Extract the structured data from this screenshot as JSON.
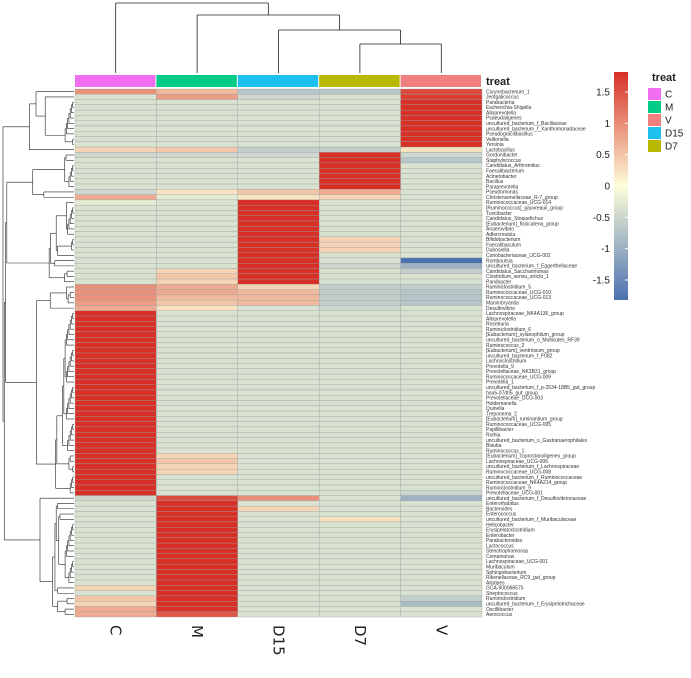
{
  "chart_data": {
    "type": "heatmap",
    "title": "",
    "annotation_label": "treat",
    "columns": [
      "C",
      "M",
      "D15",
      "D7",
      "V"
    ],
    "groups": [
      {
        "name": "C",
        "color": "#f06ef0"
      },
      {
        "name": "M",
        "color": "#00cc88"
      },
      {
        "name": "V",
        "color": "#f08080"
      },
      {
        "name": "D15",
        "color": "#1ec0f0"
      },
      {
        "name": "D7",
        "color": "#b8b800"
      }
    ],
    "color_scale": {
      "min": -1.5,
      "max": 1.5,
      "low": "#4a70b0",
      "mid": "#fdfdd8",
      "high": "#d73027",
      "ticks": [
        "1.5",
        "1",
        "0.5",
        "0",
        "-0.5",
        "-1",
        "-1.5"
      ]
    },
    "rows": [
      {
        "name": "Corynebacterium_1",
        "values": [
          0.8,
          0.5,
          -0.6,
          -0.6,
          1.3
        ]
      },
      {
        "name": "Jeotgalicoccus",
        "values": [
          -0.3,
          0.7,
          -0.4,
          -0.3,
          1.4
        ]
      },
      {
        "name": "Parabacteria",
        "values": [
          -0.3,
          -0.3,
          -0.3,
          -0.3,
          1.8
        ]
      },
      {
        "name": "Escherichia-Shigella",
        "values": [
          -0.3,
          -0.3,
          -0.3,
          -0.3,
          1.8
        ]
      },
      {
        "name": "Alloprevotella",
        "values": [
          -0.3,
          -0.3,
          -0.3,
          -0.3,
          1.8
        ]
      },
      {
        "name": "Psaeudaligenes",
        "values": [
          -0.3,
          -0.3,
          -0.3,
          -0.3,
          1.8
        ]
      },
      {
        "name": "uncultured_bacterium_f_Bacillaceae",
        "values": [
          -0.3,
          -0.3,
          -0.3,
          -0.3,
          1.8
        ]
      },
      {
        "name": "uncultured_bacterium_f_Xanthomonadaceae",
        "values": [
          -0.3,
          -0.3,
          -0.3,
          -0.3,
          1.8
        ]
      },
      {
        "name": "Pseudogracilibacillus",
        "values": [
          -0.3,
          -0.3,
          -0.3,
          -0.3,
          1.8
        ]
      },
      {
        "name": "Veillonella",
        "values": [
          -0.3,
          -0.3,
          -0.3,
          -0.3,
          1.8
        ]
      },
      {
        "name": "Yersinia",
        "values": [
          -0.3,
          -0.3,
          -0.3,
          -0.3,
          1.8
        ]
      },
      {
        "name": "Lactobacillus",
        "values": [
          0.3,
          0.4,
          -0.5,
          -0.5,
          0.2
        ]
      },
      {
        "name": "Gordonibacter",
        "values": [
          -0.4,
          -0.4,
          -0.4,
          1.8,
          -0.4
        ]
      },
      {
        "name": "Staphylococcus",
        "values": [
          -0.3,
          -0.3,
          -0.3,
          1.8,
          -0.6
        ]
      },
      {
        "name": "Candidatus_Arthromitus",
        "values": [
          -0.3,
          -0.3,
          -0.3,
          1.8,
          -0.3
        ]
      },
      {
        "name": "Faecalibacterium",
        "values": [
          -0.3,
          -0.3,
          -0.3,
          1.8,
          -0.3
        ]
      },
      {
        "name": "Acinetobacter",
        "values": [
          -0.3,
          -0.3,
          -0.3,
          1.8,
          -0.3
        ]
      },
      {
        "name": "Bacillus",
        "values": [
          -0.3,
          -0.3,
          -0.3,
          1.8,
          -0.3
        ]
      },
      {
        "name": "Paraprevotella",
        "values": [
          -0.3,
          -0.3,
          -0.3,
          1.8,
          -0.3
        ]
      },
      {
        "name": "Pseudomonas",
        "values": [
          -0.4,
          0.2,
          0.4,
          0.6,
          -0.3
        ]
      },
      {
        "name": "Christensenellaceae_R-7_group",
        "values": [
          0.6,
          -0.2,
          0.2,
          0.3,
          -0.3
        ]
      },
      {
        "name": "Ruminococcaceae_UCG-014",
        "values": [
          -0.2,
          -0.3,
          1.8,
          -0.3,
          -0.3
        ]
      },
      {
        "name": "[Ruminococcus]_gauvreauii_group",
        "values": [
          -0.3,
          -0.3,
          1.8,
          -0.3,
          -0.3
        ]
      },
      {
        "name": "Turicibacter",
        "values": [
          -0.3,
          -0.3,
          1.8,
          -0.3,
          -0.3
        ]
      },
      {
        "name": "Candidatus_Stoquefichus",
        "values": [
          -0.3,
          -0.3,
          1.8,
          -0.3,
          -0.3
        ]
      },
      {
        "name": "[Eubacterium]_fissicatena_group",
        "values": [
          -0.3,
          -0.3,
          1.8,
          -0.3,
          -0.3
        ]
      },
      {
        "name": "Anaerovibrio",
        "values": [
          -0.3,
          -0.3,
          1.8,
          -0.3,
          -0.3
        ]
      },
      {
        "name": "Adlercreutzia",
        "values": [
          -0.3,
          -0.3,
          1.8,
          -0.3,
          -0.3
        ]
      },
      {
        "name": "Bifidobacterium",
        "values": [
          -0.3,
          -0.3,
          1.8,
          0.3,
          -0.3
        ]
      },
      {
        "name": "Faecalibaculum",
        "values": [
          -0.3,
          -0.3,
          1.8,
          0.3,
          -0.3
        ]
      },
      {
        "name": "Dubosiella",
        "values": [
          -0.3,
          -0.3,
          1.8,
          0.3,
          -0.3
        ]
      },
      {
        "name": "Coriobacteriaceae_UCG-002",
        "values": [
          -0.3,
          -0.3,
          1.8,
          -0.3,
          -0.3
        ]
      },
      {
        "name": "Romboutsia",
        "values": [
          -0.3,
          -0.3,
          1.8,
          -0.3,
          -1.5
        ]
      },
      {
        "name": "uncultured_bacterium_f_Eggerthellaceae",
        "values": [
          -0.3,
          -0.3,
          1.8,
          -0.4,
          -0.8
        ]
      },
      {
        "name": "Candidatus_Saccharimonas",
        "values": [
          -0.3,
          0.3,
          1.8,
          -0.3,
          -0.5
        ]
      },
      {
        "name": "Clostridium_sensu_stricto_1",
        "values": [
          -0.3,
          0.4,
          1.8,
          -0.3,
          -0.3
        ]
      },
      {
        "name": "Parvibacter",
        "values": [
          -0.3,
          0.3,
          1.5,
          -0.3,
          -0.3
        ]
      },
      {
        "name": "Ruminiclostridium_5",
        "values": [
          0.8,
          0.6,
          0.3,
          -0.5,
          -0.5
        ]
      },
      {
        "name": "Ruminococcaceae_UCG-010",
        "values": [
          0.8,
          0.6,
          0.5,
          -0.5,
          -0.6
        ]
      },
      {
        "name": "Ruminococcaceae_UCG-013",
        "values": [
          0.8,
          0.5,
          0.5,
          -0.5,
          -0.6
        ]
      },
      {
        "name": "Marvinbryantia",
        "values": [
          0.7,
          0.4,
          0.5,
          -0.5,
          -0.6
        ]
      },
      {
        "name": "Desulfovibrio",
        "values": [
          0.6,
          0.2,
          -0.3,
          -0.4,
          -0.3
        ]
      },
      {
        "name": "Lachnospiraceae_NK4A136_group",
        "values": [
          1.8,
          -0.3,
          -0.3,
          -0.3,
          -0.3
        ]
      },
      {
        "name": "Alloprevotella",
        "values": [
          1.8,
          -0.3,
          -0.3,
          -0.3,
          -0.3
        ]
      },
      {
        "name": "Roseburia",
        "values": [
          1.8,
          -0.3,
          -0.3,
          -0.3,
          -0.3
        ]
      },
      {
        "name": "Ruminiclostridium_6",
        "values": [
          1.8,
          -0.3,
          -0.3,
          -0.3,
          -0.3
        ]
      },
      {
        "name": "[Eubacterium]_xylanophilum_group",
        "values": [
          1.8,
          -0.3,
          -0.3,
          -0.3,
          -0.3
        ]
      },
      {
        "name": "uncultured_bacterium_o_Mollicutes_RF39",
        "values": [
          1.8,
          -0.3,
          -0.3,
          -0.3,
          -0.3
        ]
      },
      {
        "name": "Ruminococcus_2",
        "values": [
          1.8,
          -0.3,
          -0.3,
          -0.3,
          -0.3
        ]
      },
      {
        "name": "[Eubacterium]_ventriosum_group",
        "values": [
          1.8,
          -0.3,
          -0.3,
          -0.3,
          -0.3
        ]
      },
      {
        "name": "uncultured_bacterium_f_F082",
        "values": [
          1.8,
          -0.3,
          -0.3,
          -0.3,
          -0.3
        ]
      },
      {
        "name": "Lachnoclostridium",
        "values": [
          1.8,
          -0.3,
          -0.3,
          -0.3,
          -0.3
        ]
      },
      {
        "name": "Prevotella_9",
        "values": [
          1.8,
          -0.3,
          -0.3,
          -0.3,
          -0.3
        ]
      },
      {
        "name": "Prevotellaceae_NK3B31_group",
        "values": [
          1.8,
          -0.3,
          -0.3,
          -0.3,
          -0.3
        ]
      },
      {
        "name": "Ruminococcaceae_UCG-009",
        "values": [
          1.8,
          -0.3,
          -0.3,
          -0.3,
          -0.3
        ]
      },
      {
        "name": "Prevotella_1",
        "values": [
          1.8,
          -0.3,
          -0.3,
          -0.3,
          -0.3
        ]
      },
      {
        "name": "uncultured_bacterium_f_p-2534-18B5_gut_group",
        "values": [
          1.8,
          -0.3,
          -0.3,
          -0.3,
          -0.3
        ]
      },
      {
        "name": "hoa5-07d05_gut_group",
        "values": [
          1.8,
          -0.3,
          -0.3,
          -0.3,
          -0.3
        ]
      },
      {
        "name": "Prevotellaceae_UCG-003",
        "values": [
          1.8,
          -0.3,
          -0.3,
          -0.3,
          -0.3
        ]
      },
      {
        "name": "Holdemanella",
        "values": [
          1.8,
          -0.3,
          -0.3,
          -0.3,
          -0.3
        ]
      },
      {
        "name": "Quinella",
        "values": [
          1.8,
          -0.3,
          -0.3,
          -0.3,
          -0.3
        ]
      },
      {
        "name": "Treponema_2",
        "values": [
          1.8,
          -0.3,
          -0.3,
          -0.3,
          -0.3
        ]
      },
      {
        "name": "[Eubacterium]_ruminantium_group",
        "values": [
          1.8,
          -0.3,
          -0.3,
          -0.3,
          -0.3
        ]
      },
      {
        "name": "Ruminococcaceae_UCG-005",
        "values": [
          1.8,
          -0.3,
          -0.3,
          -0.3,
          -0.3
        ]
      },
      {
        "name": "Papillibacter",
        "values": [
          1.8,
          -0.3,
          -0.3,
          -0.3,
          -0.3
        ]
      },
      {
        "name": "Rothia",
        "values": [
          1.8,
          -0.3,
          -0.3,
          -0.3,
          -0.3
        ]
      },
      {
        "name": "uncultured_bacterium_o_Gastranaerophilales",
        "values": [
          1.8,
          -0.3,
          -0.3,
          -0.3,
          -0.3
        ]
      },
      {
        "name": "Blautia",
        "values": [
          1.8,
          -0.3,
          -0.3,
          -0.3,
          -0.3
        ]
      },
      {
        "name": "Ruminococcus_1",
        "values": [
          1.8,
          -0.3,
          -0.3,
          -0.3,
          -0.3
        ]
      },
      {
        "name": "[Eubacterium]_coprostanoligenes_group",
        "values": [
          1.8,
          0.3,
          -0.3,
          -0.3,
          -0.3
        ]
      },
      {
        "name": "Lachnospiraceae_UCG-006",
        "values": [
          1.8,
          0.4,
          -0.3,
          -0.3,
          -0.3
        ]
      },
      {
        "name": "uncultured_bacterium_f_Lachnospiraceae",
        "values": [
          1.8,
          0.3,
          -0.3,
          -0.3,
          -0.3
        ]
      },
      {
        "name": "Ruminococcaceae_UCG-008",
        "values": [
          1.8,
          0.3,
          -0.3,
          -0.3,
          -0.3
        ]
      },
      {
        "name": "uncultured_bacterium_f_Ruminococcaceae",
        "values": [
          1.8,
          -0.3,
          -0.3,
          -0.3,
          -0.3
        ]
      },
      {
        "name": "Ruminococcaceae_NK4A214_group",
        "values": [
          1.8,
          -0.3,
          -0.3,
          -0.3,
          -0.3
        ]
      },
      {
        "name": "Ruminiclostridium_9",
        "values": [
          1.8,
          -0.3,
          -0.3,
          -0.3,
          -0.3
        ]
      },
      {
        "name": "Prevotellaceae_UCG-001",
        "values": [
          1.8,
          -0.3,
          -0.3,
          -0.3,
          -0.4
        ]
      },
      {
        "name": "uncultured_bacterium_f_Desulfovibrionaceae",
        "values": [
          -0.4,
          1.3,
          0.8,
          -0.3,
          -0.8
        ]
      },
      {
        "name": "Enterorhabdus",
        "values": [
          -0.3,
          1.8,
          -0.3,
          -0.3,
          -0.3
        ]
      },
      {
        "name": "Bacteroides",
        "values": [
          -0.3,
          1.8,
          0.3,
          -0.3,
          -0.3
        ]
      },
      {
        "name": "Enterococcus",
        "values": [
          -0.3,
          1.8,
          -0.3,
          -0.3,
          -0.3
        ]
      },
      {
        "name": "uncultured_bacterium_f_Muribaculaceae",
        "values": [
          -0.3,
          1.8,
          -0.3,
          0.2,
          -0.3
        ]
      },
      {
        "name": "Helicobacter",
        "values": [
          -0.3,
          1.8,
          -0.3,
          -0.3,
          -0.3
        ]
      },
      {
        "name": "Erysipelatoclostridium",
        "values": [
          -0.3,
          1.8,
          -0.3,
          -0.3,
          -0.3
        ]
      },
      {
        "name": "Enterobacter",
        "values": [
          -0.3,
          1.8,
          -0.3,
          -0.3,
          -0.3
        ]
      },
      {
        "name": "Parabacteroides",
        "values": [
          -0.3,
          1.8,
          -0.3,
          -0.3,
          -0.3
        ]
      },
      {
        "name": "Lactococcus",
        "values": [
          -0.3,
          1.8,
          -0.3,
          -0.3,
          -0.3
        ]
      },
      {
        "name": "Stenotrophomonas",
        "values": [
          -0.3,
          1.8,
          -0.3,
          -0.3,
          -0.3
        ]
      },
      {
        "name": "Comamonas",
        "values": [
          -0.3,
          1.8,
          -0.3,
          -0.3,
          -0.3
        ]
      },
      {
        "name": "Lachnospiraceae_UCG-001",
        "values": [
          -0.3,
          1.8,
          -0.3,
          -0.3,
          -0.3
        ]
      },
      {
        "name": "Muribaculum",
        "values": [
          -0.3,
          1.8,
          -0.3,
          -0.3,
          -0.3
        ]
      },
      {
        "name": "Sphingobacterium",
        "values": [
          -0.3,
          1.8,
          -0.3,
          -0.3,
          -0.3
        ]
      },
      {
        "name": "Rikenellaceae_RC9_gut_group",
        "values": [
          -0.3,
          1.8,
          -0.3,
          -0.3,
          -0.3
        ]
      },
      {
        "name": "Alistipes",
        "values": [
          -0.3,
          1.8,
          -0.3,
          -0.3,
          -0.3
        ]
      },
      {
        "name": "GCA-900066575",
        "values": [
          0.3,
          1.8,
          -0.3,
          -0.3,
          -0.3
        ]
      },
      {
        "name": "Streptococcus",
        "values": [
          -0.3,
          1.8,
          -0.3,
          -0.3,
          -0.3
        ]
      },
      {
        "name": "Ruminiclostridium",
        "values": [
          0.4,
          1.8,
          -0.3,
          -0.3,
          -0.5
        ]
      },
      {
        "name": "uncultured_bacterium_f_Erysipelotrichaceae",
        "values": [
          0.3,
          1.8,
          -0.3,
          -0.3,
          -0.7
        ]
      },
      {
        "name": "Oscillibacter",
        "values": [
          0.6,
          1.5,
          -0.3,
          -0.3,
          -0.3
        ]
      },
      {
        "name": "Aerococcus",
        "values": [
          0.6,
          1.2,
          -0.3,
          -0.3,
          -0.3
        ]
      }
    ]
  }
}
